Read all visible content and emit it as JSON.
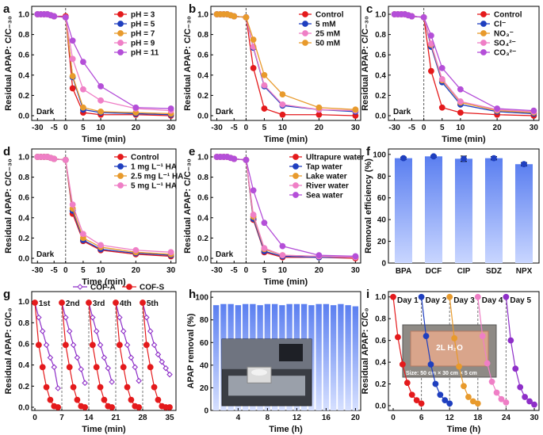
{
  "chart_data": [
    {
      "id": "a",
      "panel_label": "a",
      "type": "line",
      "xlabel": "Time (min)",
      "ylabel": "Residual APAP: C/C₋₃₀",
      "xticks": [
        "-30",
        "-5",
        "0",
        "5",
        "10",
        "20",
        "30"
      ],
      "yticks": [
        "0.0",
        "0.2",
        "0.4",
        "0.6",
        "0.8",
        "1.0"
      ],
      "ylim": [
        0,
        1.0
      ],
      "annotation": "Dark",
      "x": [
        -30,
        -25,
        -20,
        -15,
        -10,
        -5,
        0,
        2,
        5,
        10,
        20,
        30
      ],
      "series": [
        {
          "name": "pH = 3",
          "color": "#e41a1c",
          "values": [
            1.0,
            1.0,
            1.0,
            1.0,
            0.99,
            0.98,
            0.98,
            0.27,
            0.03,
            0.01,
            0.01,
            0.0
          ]
        },
        {
          "name": "pH = 5",
          "color": "#1f3fbf",
          "values": [
            1.0,
            1.0,
            1.0,
            1.0,
            0.99,
            0.98,
            0.97,
            0.38,
            0.06,
            0.03,
            0.02,
            0.01
          ]
        },
        {
          "name": "pH = 7",
          "color": "#e89a2c",
          "values": [
            1.0,
            1.0,
            1.0,
            1.0,
            0.99,
            0.98,
            0.97,
            0.39,
            0.08,
            0.04,
            0.03,
            0.02
          ]
        },
        {
          "name": "pH = 9",
          "color": "#ef7fc6",
          "values": [
            1.0,
            1.0,
            1.0,
            1.0,
            0.99,
            0.98,
            0.97,
            0.56,
            0.26,
            0.15,
            0.07,
            0.05
          ]
        },
        {
          "name": "pH = 11",
          "color": "#b44fd8",
          "values": [
            1.0,
            1.0,
            1.0,
            1.0,
            0.99,
            0.98,
            0.97,
            0.74,
            0.53,
            0.29,
            0.08,
            0.07
          ]
        }
      ]
    },
    {
      "id": "b",
      "panel_label": "b",
      "type": "line",
      "xlabel": "Time (min)",
      "ylabel": "Residual APAP: C/C₋₃₀",
      "xticks": [
        "-30",
        "-5",
        "0",
        "5",
        "10",
        "20",
        "30"
      ],
      "yticks": [
        "0.0",
        "0.2",
        "0.4",
        "0.6",
        "0.8",
        "1.0"
      ],
      "ylim": [
        0,
        1.0
      ],
      "annotation": "Dark",
      "x": [
        -30,
        -25,
        -20,
        -15,
        -10,
        -5,
        0,
        2,
        5,
        10,
        20,
        30
      ],
      "series": [
        {
          "name": "Control",
          "color": "#e41a1c",
          "values": [
            1.0,
            1.0,
            1.0,
            1.0,
            0.99,
            0.98,
            0.97,
            0.47,
            0.07,
            0.01,
            0.01,
            0.0
          ]
        },
        {
          "name": "5 mM",
          "color": "#1f3fbf",
          "values": [
            1.0,
            1.0,
            1.0,
            1.0,
            0.99,
            0.98,
            0.97,
            0.67,
            0.29,
            0.1,
            0.06,
            0.04
          ]
        },
        {
          "name": "25 mM",
          "color": "#ef7fc6",
          "values": [
            1.0,
            1.0,
            1.0,
            1.0,
            0.99,
            0.98,
            0.97,
            0.68,
            0.3,
            0.11,
            0.06,
            0.05
          ]
        },
        {
          "name": "50 mM",
          "color": "#e89a2c",
          "values": [
            1.0,
            1.0,
            1.0,
            1.0,
            0.99,
            0.98,
            0.97,
            0.75,
            0.4,
            0.21,
            0.08,
            0.06
          ]
        }
      ]
    },
    {
      "id": "c",
      "panel_label": "c",
      "type": "line",
      "xlabel": "Time (min)",
      "ylabel": "Residual APAP: C/C₋₃₀",
      "xticks": [
        "-30",
        "-5",
        "0",
        "5",
        "10",
        "20",
        "30"
      ],
      "yticks": [
        "0.0",
        "0.2",
        "0.4",
        "0.6",
        "0.8",
        "1.0"
      ],
      "ylim": [
        0,
        1.0
      ],
      "annotation": "Dark",
      "x": [
        -30,
        -25,
        -20,
        -15,
        -10,
        -5,
        0,
        2,
        5,
        10,
        20,
        30
      ],
      "series": [
        {
          "name": "Control",
          "color": "#e41a1c",
          "values": [
            1.0,
            1.0,
            1.0,
            1.0,
            0.99,
            0.98,
            0.97,
            0.44,
            0.08,
            0.03,
            0.01,
            0.0
          ]
        },
        {
          "name": "Cl⁻",
          "color": "#1f3fbf",
          "values": [
            1.0,
            1.0,
            1.0,
            1.0,
            0.99,
            0.98,
            0.97,
            0.68,
            0.33,
            0.11,
            0.04,
            0.02
          ]
        },
        {
          "name": "NO₃⁻",
          "color": "#e89a2c",
          "values": [
            1.0,
            1.0,
            1.0,
            1.0,
            0.99,
            0.98,
            0.97,
            0.7,
            0.35,
            0.13,
            0.05,
            0.03
          ]
        },
        {
          "name": "SO₄²⁻",
          "color": "#ef7fc6",
          "values": [
            1.0,
            1.0,
            1.0,
            1.0,
            0.99,
            0.98,
            0.97,
            0.71,
            0.36,
            0.14,
            0.06,
            0.04
          ]
        },
        {
          "name": "CO₃²⁻",
          "color": "#b44fd8",
          "values": [
            1.0,
            1.0,
            1.0,
            1.0,
            0.99,
            0.98,
            0.97,
            0.79,
            0.47,
            0.26,
            0.07,
            0.05
          ]
        }
      ]
    },
    {
      "id": "d",
      "panel_label": "d",
      "type": "line",
      "xlabel": "Time (min)",
      "ylabel": "Residual APAP: C/C₋₃₀",
      "xticks": [
        "-30",
        "-5",
        "0",
        "5",
        "10",
        "20",
        "30"
      ],
      "yticks": [
        "0.0",
        "0.2",
        "0.4",
        "0.6",
        "0.8",
        "1.0"
      ],
      "ylim": [
        0,
        1.0
      ],
      "annotation": "Dark",
      "x": [
        -30,
        -25,
        -20,
        -15,
        -10,
        -5,
        0,
        2,
        5,
        10,
        20,
        30
      ],
      "series": [
        {
          "name": "Control",
          "color": "#e41a1c",
          "values": [
            1.0,
            1.0,
            1.0,
            1.0,
            0.99,
            0.98,
            0.97,
            0.44,
            0.17,
            0.08,
            0.04,
            0.02
          ]
        },
        {
          "name": "1 mg L⁻¹ HA",
          "color": "#1f3fbf",
          "values": [
            1.0,
            1.0,
            1.0,
            1.0,
            0.99,
            0.98,
            0.97,
            0.47,
            0.18,
            0.09,
            0.05,
            0.03
          ]
        },
        {
          "name": "2.5 mg L⁻¹ HA",
          "color": "#e89a2c",
          "values": [
            1.0,
            1.0,
            1.0,
            1.0,
            0.99,
            0.98,
            0.97,
            0.49,
            0.2,
            0.11,
            0.06,
            0.04
          ]
        },
        {
          "name": "5 mg L⁻¹ HA",
          "color": "#ef7fc6",
          "values": [
            1.0,
            1.0,
            1.0,
            1.0,
            0.99,
            0.98,
            0.97,
            0.53,
            0.24,
            0.13,
            0.08,
            0.06
          ]
        }
      ]
    },
    {
      "id": "e",
      "panel_label": "e",
      "type": "line",
      "xlabel": "Time (min)",
      "ylabel": "Residual APAP: C/C₋₃₀",
      "xticks": [
        "-30",
        "-5",
        "0",
        "5",
        "10",
        "20",
        "30"
      ],
      "yticks": [
        "0.0",
        "0.2",
        "0.4",
        "0.6",
        "0.8",
        "1.0"
      ],
      "ylim": [
        0,
        1.0
      ],
      "annotation": "Dark",
      "x": [
        -30,
        -25,
        -20,
        -15,
        -10,
        -5,
        0,
        2,
        5,
        10,
        20,
        30
      ],
      "series": [
        {
          "name": "Ultrapure water",
          "color": "#e41a1c",
          "values": [
            1.0,
            1.0,
            1.0,
            1.0,
            0.99,
            0.98,
            0.97,
            0.38,
            0.06,
            0.01,
            0.01,
            0.0
          ]
        },
        {
          "name": "Tap water",
          "color": "#1f3fbf",
          "values": [
            1.0,
            1.0,
            1.0,
            1.0,
            0.99,
            0.98,
            0.97,
            0.39,
            0.07,
            0.02,
            0.01,
            0.01
          ]
        },
        {
          "name": "Lake water",
          "color": "#e89a2c",
          "values": [
            1.0,
            1.0,
            1.0,
            1.0,
            0.99,
            0.98,
            0.97,
            0.41,
            0.09,
            0.03,
            0.02,
            0.01
          ]
        },
        {
          "name": "River water",
          "color": "#ef7fc6",
          "values": [
            1.0,
            1.0,
            1.0,
            1.0,
            0.99,
            0.98,
            0.97,
            0.43,
            0.1,
            0.03,
            0.02,
            0.01
          ]
        },
        {
          "name": "Sea water",
          "color": "#b44fd8",
          "values": [
            1.0,
            1.0,
            1.0,
            1.0,
            0.99,
            0.98,
            0.97,
            0.67,
            0.35,
            0.12,
            0.03,
            0.02
          ]
        }
      ]
    },
    {
      "id": "f",
      "panel_label": "f",
      "type": "bar",
      "ylabel": "Removal efficiency (%)",
      "categories": [
        "BPA",
        "DCF",
        "CIP",
        "SDZ",
        "NPX"
      ],
      "values": [
        96.5,
        98.2,
        96.0,
        96.5,
        91.0
      ],
      "errors": [
        1.0,
        0.8,
        2.5,
        1.5,
        1.5
      ],
      "yticks": [
        "0",
        "20",
        "40",
        "60",
        "80",
        "100"
      ],
      "ylim": [
        0,
        100
      ],
      "color": "#5b7ff0"
    },
    {
      "id": "g",
      "panel_label": "g",
      "type": "line",
      "xlabel": "Time (min)",
      "ylabel": "Residual APAP: C/C₀",
      "xticks": [
        "0",
        "7",
        "14",
        "21",
        "28",
        "35"
      ],
      "yticks": [
        "0.0",
        "0.2",
        "0.4",
        "0.6",
        "0.8",
        "1.0"
      ],
      "ylim": [
        0,
        1.0
      ],
      "cycle_labels": [
        "1st",
        "2nd",
        "3rd",
        "4th",
        "5th"
      ],
      "series": [
        {
          "name": "COF-A",
          "color": "#8e2fc8",
          "x": [
            0,
            1,
            2,
            3,
            4,
            5,
            6,
            7,
            8,
            9,
            10,
            11,
            12,
            13,
            14,
            15,
            16,
            17,
            18,
            19,
            20,
            21,
            22,
            23,
            24,
            25,
            26,
            27,
            28,
            29,
            30,
            31,
            32,
            33,
            34,
            35
          ],
          "values": [
            0.99,
            0.85,
            0.72,
            0.59,
            0.47,
            0.38,
            0.18,
            0.99,
            0.85,
            0.72,
            0.59,
            0.47,
            0.36,
            0.23,
            0.99,
            0.85,
            0.72,
            0.59,
            0.47,
            0.37,
            0.24,
            0.99,
            0.85,
            0.72,
            0.59,
            0.47,
            0.38,
            0.25,
            0.99,
            0.85,
            0.72,
            0.59,
            0.5,
            0.43,
            0.37,
            0.31
          ]
        },
        {
          "name": "COF-S",
          "color": "#e41a1c",
          "x": [
            0,
            1,
            2,
            3,
            4,
            5,
            6,
            7,
            8,
            9,
            10,
            11,
            12,
            13,
            14,
            15,
            16,
            17,
            18,
            19,
            20,
            21,
            22,
            23,
            24,
            25,
            26,
            27,
            28,
            29,
            30,
            31,
            32,
            33,
            34,
            35
          ],
          "values": [
            0.99,
            0.59,
            0.38,
            0.19,
            0.07,
            0.01,
            0.0,
            0.99,
            0.59,
            0.38,
            0.19,
            0.07,
            0.01,
            0.0,
            0.99,
            0.59,
            0.38,
            0.19,
            0.07,
            0.01,
            0.0,
            0.99,
            0.59,
            0.38,
            0.19,
            0.07,
            0.01,
            0.0,
            0.99,
            0.59,
            0.38,
            0.19,
            0.07,
            0.01,
            0.0,
            0.0
          ]
        }
      ]
    },
    {
      "id": "h",
      "panel_label": "h",
      "type": "bar",
      "xlabel": "Time (h)",
      "ylabel": "APAP removal (%)",
      "xticks": [
        "4",
        "8",
        "12",
        "16",
        "20"
      ],
      "yticks": [
        "0",
        "20",
        "40",
        "60",
        "80",
        "100"
      ],
      "ylim": [
        0,
        100
      ],
      "categories": [
        "1",
        "2",
        "3",
        "4",
        "5",
        "6",
        "7",
        "8",
        "9",
        "10",
        "11",
        "12",
        "13",
        "14",
        "15",
        "16",
        "17",
        "18",
        "19",
        "20"
      ],
      "values": [
        93,
        94,
        94,
        93,
        94,
        94,
        93,
        94,
        94,
        93,
        94,
        94,
        94,
        93,
        94,
        94,
        93,
        94,
        93,
        92
      ],
      "color": "#5b7ff0"
    },
    {
      "id": "i",
      "panel_label": "i",
      "type": "line",
      "xlabel": "Time (h)",
      "ylabel": "Residual APAP: C/C₀",
      "xticks": [
        "0",
        "6",
        "12",
        "18",
        "24",
        "30"
      ],
      "yticks": [
        "0.0",
        "0.2",
        "0.4",
        "0.6",
        "0.8",
        "1.0"
      ],
      "ylim": [
        0,
        1.0
      ],
      "inset_texts": [
        "2L H₂O",
        "Size: 50 cm × 30 cm × 5 cm"
      ],
      "series": [
        {
          "name": "Day 1",
          "color": "#e41a1c",
          "x": [
            0,
            1,
            2,
            3,
            4,
            5,
            6
          ],
          "values": [
            1.0,
            0.63,
            0.38,
            0.21,
            0.1,
            0.05,
            0.02
          ]
        },
        {
          "name": "Day 2",
          "color": "#1f3fbf",
          "x": [
            6,
            7,
            8,
            9,
            10,
            11,
            12
          ],
          "values": [
            1.0,
            0.64,
            0.38,
            0.2,
            0.1,
            0.05,
            0.02
          ]
        },
        {
          "name": "Day 3",
          "color": "#e89a2c",
          "x": [
            12,
            13,
            14,
            15,
            16,
            17,
            18
          ],
          "values": [
            1.0,
            0.62,
            0.36,
            0.18,
            0.08,
            0.04,
            0.02
          ]
        },
        {
          "name": "Day 4",
          "color": "#ef7fc6",
          "x": [
            18,
            19,
            20,
            21,
            22,
            23,
            24
          ],
          "values": [
            1.0,
            0.64,
            0.39,
            0.22,
            0.12,
            0.06,
            0.03
          ]
        },
        {
          "name": "Day 5",
          "color": "#8e2fc8",
          "x": [
            24,
            25,
            26,
            27,
            28,
            29,
            30
          ],
          "values": [
            1.0,
            0.6,
            0.34,
            0.17,
            0.08,
            0.04,
            0.01
          ]
        }
      ]
    }
  ]
}
